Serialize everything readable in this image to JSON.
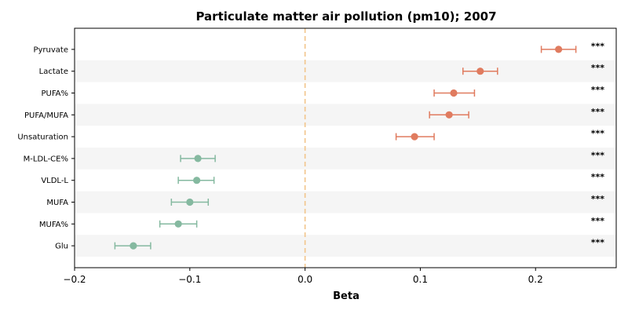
{
  "chart_data": {
    "type": "forest",
    "title": "Particulate matter air pollution (pm10); 2007",
    "xlabel": "Beta",
    "xlim": [
      -0.2,
      0.27
    ],
    "xticks": [
      {
        "value": -0.2,
        "label": "−0.2"
      },
      {
        "value": -0.1,
        "label": "−0.1"
      },
      {
        "value": 0.0,
        "label": "0.0"
      },
      {
        "value": 0.1,
        "label": "0.1"
      },
      {
        "value": 0.2,
        "label": "0.2"
      }
    ],
    "reference_line": 0,
    "colors": {
      "positive": "#e07b5f",
      "negative": "#85b9a0",
      "reference": "#f2c58a",
      "stripe": "#f5f5f5"
    },
    "rows": [
      {
        "label": "Pyruvate",
        "beta": 0.22,
        "ci_low": 0.205,
        "ci_high": 0.235,
        "sig": "***"
      },
      {
        "label": "Lactate",
        "beta": 0.152,
        "ci_low": 0.137,
        "ci_high": 0.167,
        "sig": "***"
      },
      {
        "label": "PUFA%",
        "beta": 0.129,
        "ci_low": 0.112,
        "ci_high": 0.147,
        "sig": "***"
      },
      {
        "label": "PUFA/MUFA",
        "beta": 0.125,
        "ci_low": 0.108,
        "ci_high": 0.142,
        "sig": "***"
      },
      {
        "label": "Unsaturation",
        "beta": 0.095,
        "ci_low": 0.079,
        "ci_high": 0.112,
        "sig": "***"
      },
      {
        "label": "M-LDL-CE%",
        "beta": -0.093,
        "ci_low": -0.108,
        "ci_high": -0.078,
        "sig": "***"
      },
      {
        "label": "VLDL-L",
        "beta": -0.094,
        "ci_low": -0.11,
        "ci_high": -0.079,
        "sig": "***"
      },
      {
        "label": "MUFA",
        "beta": -0.1,
        "ci_low": -0.116,
        "ci_high": -0.084,
        "sig": "***"
      },
      {
        "label": "MUFA%",
        "beta": -0.11,
        "ci_low": -0.126,
        "ci_high": -0.094,
        "sig": "***"
      },
      {
        "label": "Glu",
        "beta": -0.149,
        "ci_low": -0.165,
        "ci_high": -0.134,
        "sig": "***"
      }
    ]
  }
}
